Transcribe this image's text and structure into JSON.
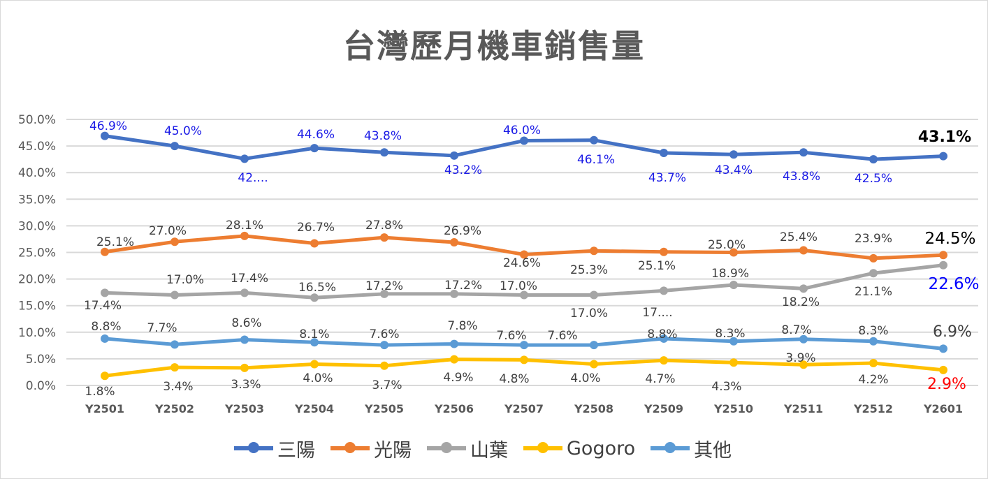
{
  "chart_data": {
    "type": "line",
    "title": "台灣歷月機車銷售量",
    "categories": [
      "Y2501",
      "Y2502",
      "Y2503",
      "Y2504",
      "Y2505",
      "Y2506",
      "Y2507",
      "Y2508",
      "Y2509",
      "Y2510",
      "Y2511",
      "Y2512",
      "Y2601"
    ],
    "ylim": [
      0,
      50
    ],
    "yticks": [
      "0.0%",
      "5.0%",
      "10.0%",
      "15.0%",
      "20.0%",
      "25.0%",
      "30.0%",
      "35.0%",
      "40.0%",
      "45.0%",
      "50.0%"
    ],
    "grid": true,
    "legend_position": "bottom",
    "series": [
      {
        "name": "三陽",
        "color": "#4472C4",
        "label_color": "#1A1AE6",
        "last_label_color": "#000000",
        "values": [
          46.9,
          45.0,
          42.6,
          44.6,
          43.8,
          43.2,
          46.0,
          46.1,
          43.7,
          43.4,
          43.8,
          42.5,
          43.1
        ],
        "labels": [
          "46.9%",
          "45.0%",
          "42....",
          "44.6%",
          "43.8%",
          "43.2%",
          "46.0%",
          "46.1%",
          "43.7%",
          "43.4%",
          "43.8%",
          "42.5%",
          "43.1%"
        ]
      },
      {
        "name": "光陽",
        "color": "#ED7D31",
        "label_color": "#404040",
        "last_label_color": "#000000",
        "values": [
          25.1,
          27.0,
          28.1,
          26.7,
          27.8,
          26.9,
          24.6,
          25.3,
          25.1,
          25.0,
          25.4,
          23.9,
          24.5
        ],
        "labels": [
          "25.1%",
          "27.0%",
          "28.1%",
          "26.7%",
          "27.8%",
          "26.9%",
          "24.6%",
          "25.3%",
          "25.1%",
          "25.0%",
          "25.4%",
          "23.9%",
          "24.5%"
        ]
      },
      {
        "name": "山葉",
        "color": "#A5A5A5",
        "label_color": "#404040",
        "last_label_color": "#0000FF",
        "values": [
          17.4,
          17.0,
          17.4,
          16.5,
          17.2,
          17.2,
          17.0,
          17.0,
          17.8,
          18.9,
          18.2,
          21.1,
          22.6
        ],
        "labels": [
          "17.4%",
          "17.0%",
          "17.4%",
          "16.5%",
          "17.2%",
          "17.2%",
          "17.0%",
          "17.0%",
          "17....",
          "18.9%",
          "18.2%",
          "21.1%",
          "22.6%"
        ]
      },
      {
        "name": "Gogoro",
        "color": "#FFC000",
        "label_color": "#404040",
        "last_label_color": "#FF0000",
        "values": [
          1.8,
          3.4,
          3.3,
          4.0,
          3.7,
          4.9,
          4.8,
          4.0,
          4.7,
          4.3,
          3.9,
          4.2,
          2.9
        ],
        "labels": [
          "1.8%",
          "3.4%",
          "3.3%",
          "4.0%",
          "3.7%",
          "4.9%",
          "4.8%",
          "4.0%",
          "4.7%",
          "4.3%",
          "3.9%",
          "4.2%",
          "2.9%"
        ]
      },
      {
        "name": "其他",
        "color": "#5B9BD5",
        "label_color": "#404040",
        "last_label_color": "#404040",
        "values": [
          8.8,
          7.7,
          8.6,
          8.1,
          7.6,
          7.8,
          7.6,
          7.6,
          8.8,
          8.3,
          8.7,
          8.3,
          6.9
        ],
        "labels": [
          "8.8%",
          "7.7%",
          "8.6%",
          "8.1%",
          "7.6%",
          "7.8%",
          "7.6%",
          "7.6%",
          "8.8%",
          "8.3%",
          "8.7%",
          "8.3%",
          "6.9%"
        ]
      }
    ]
  }
}
